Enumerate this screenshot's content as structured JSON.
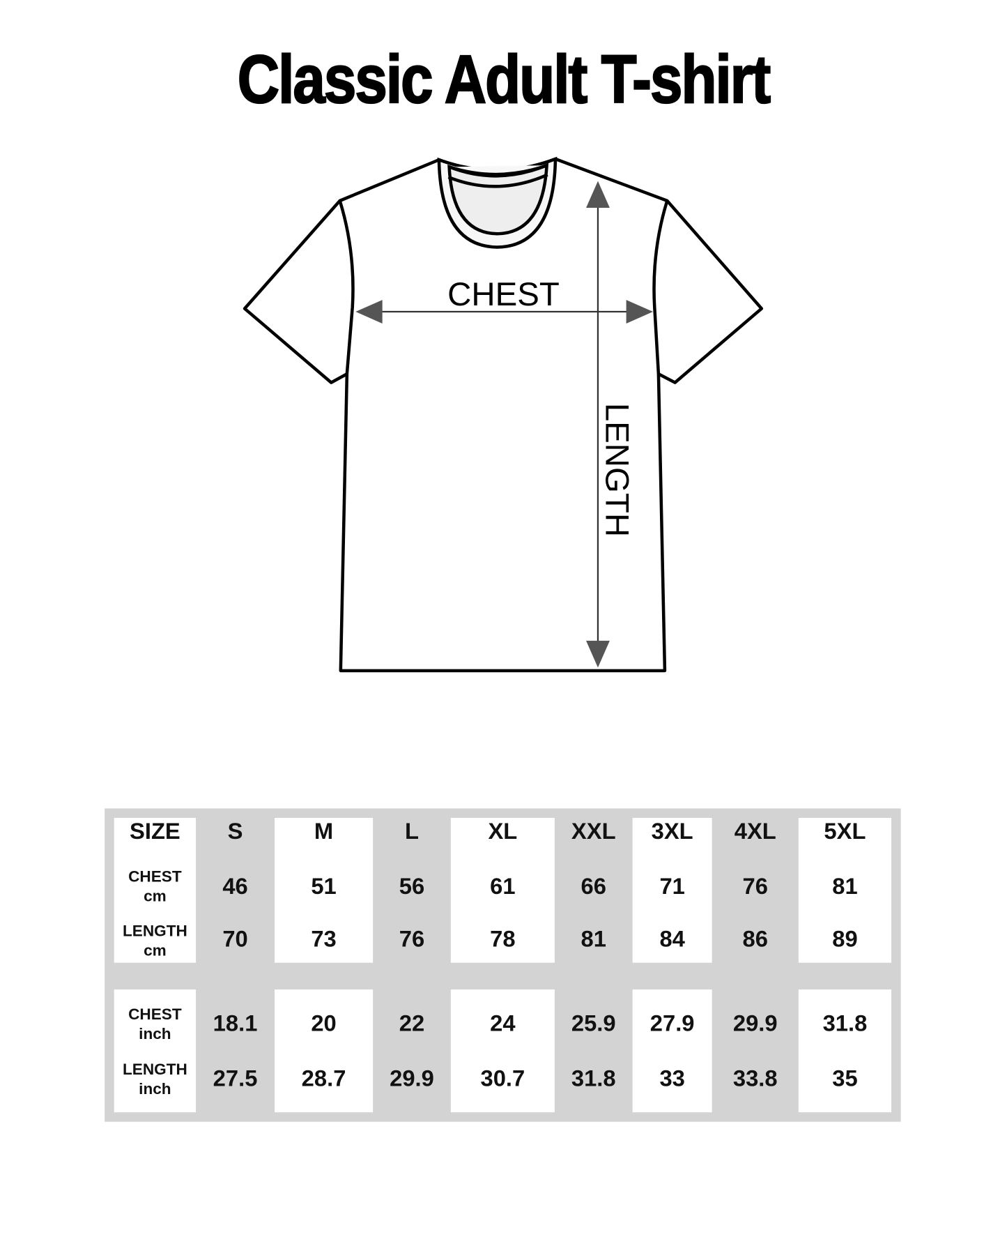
{
  "title": "Classic Adult T-shirt",
  "diagram": {
    "chest_label": "CHEST",
    "length_label": "LENGTH",
    "arrow_color": "#555555",
    "neck_fill": "#eeeeee"
  },
  "table": {
    "header_label": "SIZE",
    "sizes": [
      "S",
      "M",
      "L",
      "XL",
      "XXL",
      "3XL",
      "4XL",
      "5XL"
    ],
    "cm": {
      "chest_label": [
        "CHEST",
        "cm"
      ],
      "length_label": [
        "LENGTH",
        "cm"
      ],
      "chest": [
        "46",
        "51",
        "56",
        "61",
        "66",
        "71",
        "76",
        "81"
      ],
      "length": [
        "70",
        "73",
        "76",
        "78",
        "81",
        "84",
        "86",
        "89"
      ]
    },
    "inch": {
      "chest_label": [
        "CHEST",
        "inch"
      ],
      "length_label": [
        "LENGTH",
        "inch"
      ],
      "chest": [
        "18.1",
        "20",
        "22",
        "24",
        "25.9",
        "27.9",
        "29.9",
        "31.8"
      ],
      "length": [
        "27.5",
        "28.7",
        "29.9",
        "30.7",
        "31.8",
        "33",
        "33.8",
        "35"
      ]
    },
    "background": "#d3d3d3"
  }
}
